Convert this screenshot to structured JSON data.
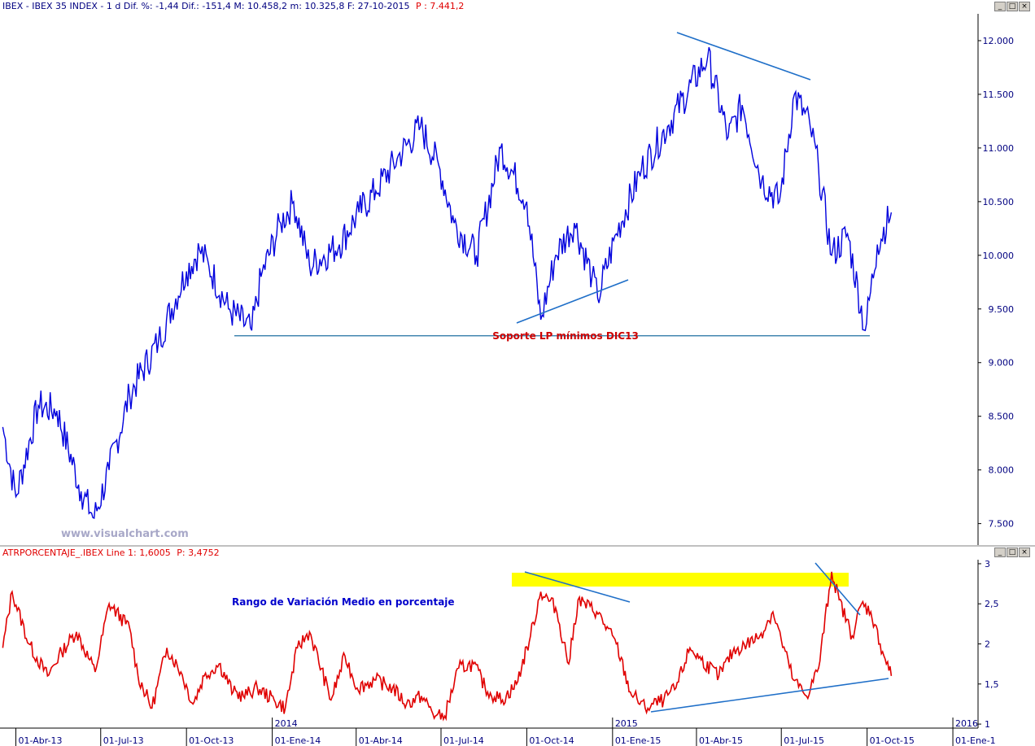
{
  "main_panel": {
    "header": "IBEX - IBEX 35 INDEX - 1 d Dif. %: -1,44  Dif.: -151,4  M: 10.458,2  m: 10.325,8  F: 27-10-2015",
    "header_value": "P : 7.441,2",
    "watermark": "www.visualchart.com",
    "annotation_support": "Soporte LP mínimos DIC13"
  },
  "sub_panel": {
    "header": "ATRPORCENTAJE_.IBEX Line 1: 1,6005",
    "header_value": "P: 3,4752",
    "annotation": "Rango de Variación Medio en porcentaje"
  },
  "window_buttons": [
    "_",
    "□",
    "×"
  ],
  "x_axis": {
    "date_labels": [
      "01-Abr-13",
      "01-Jul-13",
      "01-Oct-13",
      "01-Ene-14",
      "01-Abr-14",
      "01-Jul-14",
      "01-Oct-14",
      "01-Ene-15",
      "01-Abr-15",
      "01-Jul-15",
      "01-Oct-15",
      "01-Ene-1"
    ],
    "year_labels": [
      "2014",
      "2015",
      "2016"
    ]
  },
  "colors": {
    "price": "#0000dd",
    "atr": "#e00000",
    "trendline": "#1f6fc8",
    "support": "#1f6fa0",
    "highlight": "#ffff00",
    "annotation_red": "#cc0000",
    "annotation_blue": "#0000cc"
  },
  "chart_data": [
    {
      "type": "line",
      "series": [
        {
          "x": [
            "2013-03-18",
            "2013-04-01",
            "2013-04-25",
            "2013-05-15",
            "2013-06-10",
            "2013-06-24",
            "2013-07-10",
            "2013-08-01",
            "2013-09-01",
            "2013-10-01",
            "2013-10-15",
            "2013-10-25",
            "2013-11-15",
            "2013-12-10",
            "2013-12-20",
            "2014-01-10",
            "2014-01-24",
            "2014-02-10",
            "2014-03-14",
            "2014-04-04",
            "2014-04-22",
            "2014-05-15",
            "2014-06-09",
            "2014-06-30",
            "2014-07-15",
            "2014-08-08",
            "2014-09-03",
            "2014-10-01",
            "2014-10-16",
            "2014-11-01",
            "2014-11-21",
            "2014-12-10",
            "2014-12-16",
            "2015-01-05",
            "2015-02-01",
            "2015-03-01",
            "2015-04-13",
            "2015-05-05",
            "2015-05-20",
            "2015-06-10",
            "2015-06-29",
            "2015-07-15",
            "2015-08-01",
            "2015-08-10",
            "2015-08-24",
            "2015-09-10",
            "2015-09-29",
            "2015-10-12",
            "2015-10-27"
          ],
          "values": [
            8400,
            7750,
            8600,
            8550,
            7800,
            7550,
            8000,
            8700,
            9200,
            9850,
            10050,
            9900,
            9500,
            9300,
            9800,
            10300,
            10500,
            9900,
            10100,
            10400,
            10600,
            10900,
            11200,
            10800,
            10300,
            10000,
            11000,
            10500,
            9400,
            10000,
            10300,
            9800,
            9600,
            10200,
            10800,
            11200,
            11850,
            11100,
            11400,
            10700,
            10500,
            11500,
            11200,
            10800,
            10000,
            10200,
            9300,
            10100,
            10400
          ]
        }
      ],
      "y_ticks": [
        "7.500",
        "8.000",
        "8.500",
        "9.000",
        "9.500",
        "10.000",
        "10.500",
        "11.000",
        "11.500",
        "12.000"
      ],
      "ylim": [
        7300,
        12250
      ],
      "xlim": [
        "2013-03-15",
        "2016-01-28"
      ],
      "support_level": 9250
    },
    {
      "type": "line",
      "series": [
        {
          "x": [
            "2013-03-18",
            "2013-03-28",
            "2013-04-15",
            "2013-05-05",
            "2013-05-20",
            "2013-06-05",
            "2013-06-25",
            "2013-07-10",
            "2013-08-01",
            "2013-08-10",
            "2013-08-25",
            "2013-09-10",
            "2013-09-25",
            "2013-10-08",
            "2013-10-20",
            "2013-11-05",
            "2013-11-20",
            "2013-12-01",
            "2013-12-16",
            "2014-01-03",
            "2014-01-15",
            "2014-01-28",
            "2014-02-10",
            "2014-03-05",
            "2014-03-20",
            "2014-04-02",
            "2014-04-22",
            "2014-05-10",
            "2014-05-25",
            "2014-06-10",
            "2014-06-25",
            "2014-07-05",
            "2014-07-20",
            "2014-08-05",
            "2014-08-20",
            "2014-09-05",
            "2014-09-20",
            "2014-10-05",
            "2014-10-16",
            "2014-11-01",
            "2014-11-15",
            "2014-11-25",
            "2014-12-15",
            "2015-01-05",
            "2015-01-20",
            "2015-02-05",
            "2015-02-25",
            "2015-03-10",
            "2015-03-25",
            "2015-04-06",
            "2015-04-25",
            "2015-05-10",
            "2015-05-25",
            "2015-06-08",
            "2015-06-22",
            "2015-07-01",
            "2015-07-14",
            "2015-07-28",
            "2015-08-10",
            "2015-08-24",
            "2015-09-01",
            "2015-09-15",
            "2015-09-25",
            "2015-10-05",
            "2015-10-15",
            "2015-10-27"
          ],
          "values": [
            1.95,
            2.65,
            2.0,
            1.6,
            1.9,
            2.15,
            1.65,
            2.5,
            2.2,
            1.6,
            1.2,
            1.95,
            1.65,
            1.25,
            1.6,
            1.75,
            1.4,
            1.35,
            1.45,
            1.3,
            1.2,
            1.95,
            2.15,
            1.3,
            1.85,
            1.45,
            1.55,
            1.45,
            1.25,
            1.35,
            1.1,
            1.1,
            1.7,
            1.75,
            1.4,
            1.3,
            1.5,
            2.1,
            2.65,
            2.45,
            1.75,
            2.55,
            2.4,
            2.0,
            1.4,
            1.2,
            1.3,
            1.45,
            1.95,
            1.8,
            1.6,
            1.9,
            2.0,
            2.1,
            2.4,
            2.05,
            1.55,
            1.35,
            1.7,
            2.9,
            2.55,
            2.1,
            2.5,
            2.4,
            2.0,
            1.6
          ]
        }
      ],
      "y_ticks": [
        "1",
        "1,5",
        "2",
        "2,5",
        "3"
      ],
      "ylim": [
        0.95,
        3.05
      ],
      "xlim": [
        "2013-03-15",
        "2016-01-28"
      ]
    }
  ]
}
